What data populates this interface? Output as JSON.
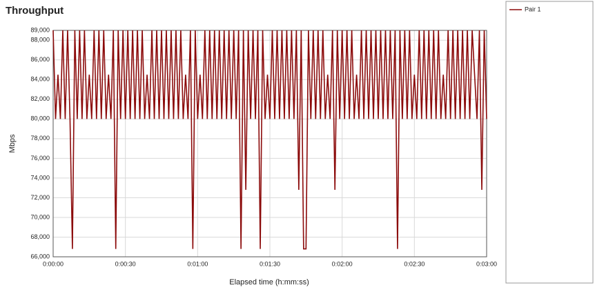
{
  "chart_data": {
    "type": "line",
    "title": "Throughput",
    "x_label": "Elapsed time (h:mm:ss)",
    "y_label": "Mbps",
    "xlim": [
      0,
      180
    ],
    "ylim": [
      66000,
      89000
    ],
    "xticks": [
      {
        "value": 0,
        "label": "0:00:00"
      },
      {
        "value": 30,
        "label": "0:00:30"
      },
      {
        "value": 60,
        "label": "0:01:00"
      },
      {
        "value": 90,
        "label": "0:01:30"
      },
      {
        "value": 120,
        "label": "0:02:00"
      },
      {
        "value": 150,
        "label": "0:02:30"
      },
      {
        "value": 180,
        "label": "0:03:00"
      }
    ],
    "yticks": [
      {
        "value": 66000,
        "label": "66,000"
      },
      {
        "value": 68000,
        "label": "68,000"
      },
      {
        "value": 70000,
        "label": "70,000"
      },
      {
        "value": 72000,
        "label": "72,000"
      },
      {
        "value": 74000,
        "label": "74,000"
      },
      {
        "value": 76000,
        "label": "76,000"
      },
      {
        "value": 78000,
        "label": "78,000"
      },
      {
        "value": 80000,
        "label": "80,000"
      },
      {
        "value": 82000,
        "label": "82,000"
      },
      {
        "value": 84000,
        "label": "84,000"
      },
      {
        "value": 86000,
        "label": "86,000"
      },
      {
        "value": 88000,
        "label": "88,000"
      },
      {
        "value": 89000,
        "label": "89,000"
      }
    ],
    "grid": true,
    "x": [
      0,
      1,
      2,
      3,
      4,
      5,
      6,
      7,
      8,
      9,
      10,
      11,
      12,
      13,
      14,
      15,
      16,
      17,
      18,
      19,
      20,
      21,
      22,
      23,
      24,
      25,
      26,
      27,
      28,
      29,
      30,
      31,
      32,
      33,
      34,
      35,
      36,
      37,
      38,
      39,
      40,
      41,
      42,
      43,
      44,
      45,
      46,
      47,
      48,
      49,
      50,
      51,
      52,
      53,
      54,
      55,
      56,
      57,
      58,
      59,
      60,
      61,
      62,
      63,
      64,
      65,
      66,
      67,
      68,
      69,
      70,
      71,
      72,
      73,
      74,
      75,
      76,
      77,
      78,
      79,
      80,
      81,
      82,
      83,
      84,
      85,
      86,
      87,
      88,
      89,
      90,
      91,
      92,
      93,
      94,
      95,
      96,
      97,
      98,
      99,
      100,
      101,
      102,
      103,
      104,
      105,
      106,
      107,
      108,
      109,
      110,
      111,
      112,
      113,
      114,
      115,
      116,
      117,
      118,
      119,
      120,
      121,
      122,
      123,
      124,
      125,
      126,
      127,
      128,
      129,
      130,
      131,
      132,
      133,
      134,
      135,
      136,
      137,
      138,
      139,
      140,
      141,
      142,
      143,
      144,
      145,
      146,
      147,
      148,
      149,
      150,
      151,
      152,
      153,
      154,
      155,
      156,
      157,
      158,
      159,
      160,
      161,
      162,
      163,
      164,
      165,
      166,
      167,
      168,
      169,
      170,
      171,
      172,
      173,
      174,
      175,
      176,
      177,
      178,
      179,
      180
    ],
    "series": [
      {
        "name": "Pair 1",
        "color": "#8b0a0a",
        "values": [
          89000,
          80000,
          84500,
          80000,
          89000,
          80000,
          89000,
          80000,
          66800,
          89000,
          80000,
          89000,
          80000,
          89000,
          80000,
          84500,
          80000,
          89000,
          80000,
          89000,
          80000,
          89000,
          80000,
          84500,
          80000,
          89000,
          66800,
          89000,
          80000,
          89000,
          80000,
          89000,
          80000,
          89000,
          80000,
          89000,
          80000,
          89000,
          80000,
          84500,
          80000,
          89000,
          80000,
          89000,
          80000,
          89000,
          80000,
          89000,
          80000,
          89000,
          80000,
          89000,
          80000,
          89000,
          80000,
          84500,
          80000,
          89000,
          66800,
          89000,
          80000,
          84500,
          80000,
          89000,
          80000,
          89000,
          80000,
          89000,
          80000,
          89000,
          80000,
          89000,
          80000,
          89000,
          80000,
          89000,
          80000,
          89000,
          66800,
          89000,
          72800,
          89000,
          80000,
          89000,
          80000,
          89000,
          66800,
          89000,
          80000,
          84500,
          80000,
          89000,
          80000,
          89000,
          80000,
          89000,
          80000,
          89000,
          80000,
          89000,
          80000,
          89000,
          72800,
          89000,
          66800,
          66800,
          89000,
          80000,
          89000,
          80000,
          89000,
          80000,
          89000,
          80000,
          84500,
          80000,
          89000,
          72800,
          89000,
          80000,
          89000,
          80000,
          89000,
          80000,
          89000,
          80000,
          84500,
          80000,
          89000,
          80000,
          89000,
          80000,
          89000,
          80000,
          89000,
          80000,
          89000,
          80000,
          89000,
          80000,
          89000,
          80000,
          89000,
          66800,
          89000,
          80000,
          89000,
          80000,
          89000,
          80000,
          84500,
          80000,
          89000,
          80000,
          89000,
          80000,
          89000,
          80000,
          89000,
          80000,
          89000,
          80000,
          84500,
          80000,
          89000,
          80000,
          89000,
          80000,
          89000,
          80000,
          89000,
          80000,
          89000,
          80000,
          89000,
          84500,
          80000,
          89000,
          72800,
          89000,
          80000
        ]
      }
    ]
  }
}
